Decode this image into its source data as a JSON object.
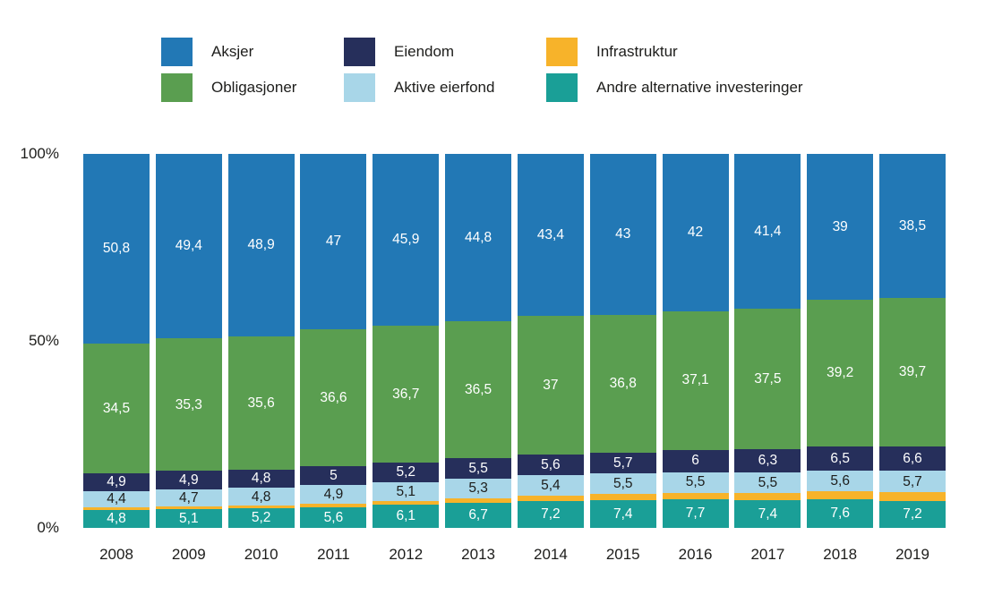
{
  "chart_data": {
    "type": "bar",
    "subtype": "stacked-100-percent",
    "decimal_separator": ",",
    "categories": [
      "2008",
      "2009",
      "2010",
      "2011",
      "2012",
      "2013",
      "2014",
      "2015",
      "2016",
      "2017",
      "2018",
      "2019"
    ],
    "yaxis": {
      "range": [
        0,
        100
      ],
      "ticks": [
        {
          "label": "100%",
          "value": 100
        },
        {
          "label": "50%",
          "value": 50
        },
        {
          "label": "0%",
          "value": 0
        }
      ]
    },
    "series": [
      {
        "name": "Aksjer",
        "color": "#2278B5",
        "label_color": "#ffffff",
        "values": [
          50.8,
          49.4,
          48.9,
          47,
          45.9,
          44.8,
          43.4,
          43,
          42,
          41.4,
          39,
          38.5
        ],
        "labels": [
          "50,8",
          "49,4",
          "48,9",
          "47",
          "45,9",
          "44,8",
          "43,4",
          "43",
          "42",
          "41,4",
          "39",
          "38,5"
        ]
      },
      {
        "name": "Obligasjoner",
        "color": "#5A9E50",
        "label_color": "#ffffff",
        "values": [
          34.5,
          35.3,
          35.6,
          36.6,
          36.7,
          36.5,
          37,
          36.8,
          37.1,
          37.5,
          39.2,
          39.7
        ],
        "labels": [
          "34,5",
          "35,3",
          "35,6",
          "36,6",
          "36,7",
          "36,5",
          "37",
          "36,8",
          "37,1",
          "37,5",
          "39,2",
          "39,7"
        ]
      },
      {
        "name": "Eiendom",
        "color": "#262F5B",
        "label_color": "#ffffff",
        "values": [
          4.9,
          4.9,
          4.8,
          5,
          5.2,
          5.5,
          5.6,
          5.7,
          6,
          6.3,
          6.5,
          6.6
        ],
        "labels": [
          "4,9",
          "4,9",
          "4,8",
          "5",
          "5,2",
          "5,5",
          "5,6",
          "5,7",
          "6",
          "6,3",
          "6,5",
          "6,6"
        ]
      },
      {
        "name": "Aktive eierfond",
        "color": "#A8D6E8",
        "label_color": "#1d1d1b",
        "values": [
          4.4,
          4.7,
          4.8,
          4.9,
          5.1,
          5.3,
          5.4,
          5.5,
          5.5,
          5.5,
          5.6,
          5.7
        ],
        "labels": [
          "4,4",
          "4,7",
          "4,8",
          "4,9",
          "5,1",
          "5,3",
          "5,4",
          "5,5",
          "5,5",
          "5,5",
          "5,6",
          "5,7"
        ]
      },
      {
        "name": "Infrastruktur",
        "color": "#F7B32A",
        "label_color": "#1d1d1b",
        "values": [
          0.6,
          0.6,
          0.7,
          0.9,
          1.0,
          1.2,
          1.4,
          1.6,
          1.7,
          1.9,
          2.1,
          2.3
        ],
        "labels": [
          "",
          "",
          "",
          "",
          "",
          "",
          "",
          "",
          "",
          "",
          "",
          ""
        ]
      },
      {
        "name": "Andre alternative investeringer",
        "color": "#1A9F97",
        "label_color": "#ffffff",
        "values": [
          4.8,
          5.1,
          5.2,
          5.6,
          6.1,
          6.7,
          7.2,
          7.4,
          7.7,
          7.4,
          7.6,
          7.2
        ],
        "labels": [
          "4,8",
          "5,1",
          "5,2",
          "5,6",
          "6,1",
          "6,7",
          "7,2",
          "7,4",
          "7,7",
          "7,4",
          "7,6",
          "7,2"
        ]
      }
    ],
    "legend": {
      "position": "top",
      "columns": [
        [
          "Aksjer",
          "Obligasjoner"
        ],
        [
          "Eiendom",
          "Aktive eierfond"
        ],
        [
          "Infrastruktur",
          "Andre alternative investeringer"
        ]
      ]
    }
  }
}
